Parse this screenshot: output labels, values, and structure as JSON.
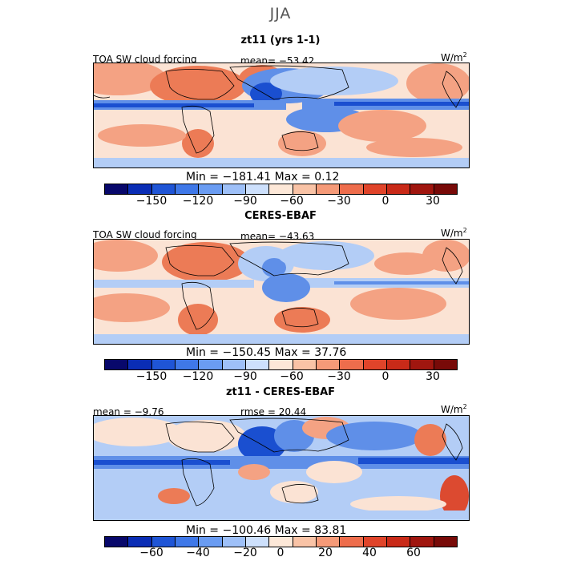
{
  "figure": {
    "season": "JJA"
  },
  "panels": [
    {
      "title": "zt11 (yrs 1-1)",
      "left_label": "TOA SW cloud forcing",
      "center_label": "mean= −53.42",
      "units": "W/m",
      "units_sup": "2",
      "stats": "Min = −181.41  Max =    0.12",
      "ticks": [
        "−150",
        "−120",
        "−90",
        "−60",
        "−30",
        "0",
        "30"
      ]
    },
    {
      "title": "CERES-EBAF",
      "left_label": "TOA SW cloud forcing",
      "center_label": "mean= −43.63",
      "units": "W/m",
      "units_sup": "2",
      "stats": "Min = −150.45  Max =   37.76",
      "ticks": [
        "−150",
        "−120",
        "−90",
        "−60",
        "−30",
        "0",
        "30"
      ]
    },
    {
      "title": "zt11 - CERES-EBAF",
      "left_label": "mean =  −9.76",
      "center_label": "rmse =  20.44",
      "units": "W/m",
      "units_sup": "2",
      "stats": "Min = −100.46  Max =   83.81",
      "ticks": [
        "−60",
        "−40",
        "−20",
        "0",
        "20",
        "40",
        "60"
      ]
    }
  ],
  "colors": {
    "colorbar": [
      "#08086b",
      "#0a2db5",
      "#1f55d6",
      "#3f78e8",
      "#6a9cf2",
      "#9ec0f8",
      "#cde0fc",
      "#fde8d8",
      "#f9c3a6",
      "#f59a78",
      "#ee6d4c",
      "#e0442a",
      "#c92a18",
      "#a0160f",
      "#780a08"
    ],
    "blue_deep": "#1a4fd0",
    "blue_mid": "#5f8fe8",
    "blue_light": "#b3cdf6",
    "pale": "#fbe3d4",
    "salmon": "#f4a283",
    "orange": "#ec7b56",
    "red": "#dc4a30"
  }
}
